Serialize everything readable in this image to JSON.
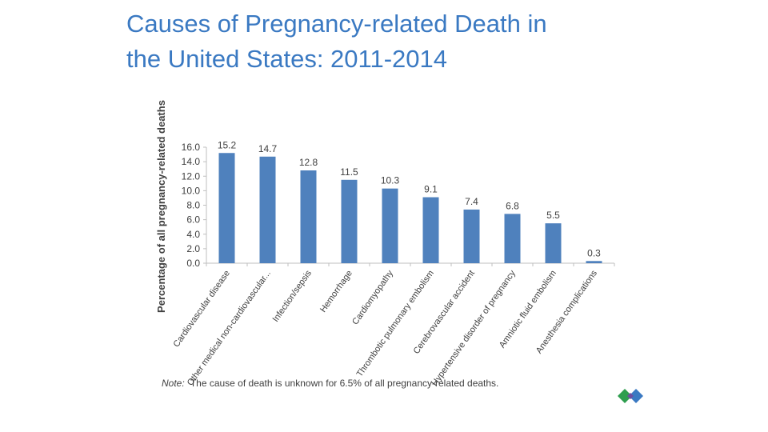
{
  "slide": {
    "title_line1": "Causes of Pregnancy-related Death in",
    "title_line2": "the United States: 2011-2014"
  },
  "chart_data": {
    "type": "bar",
    "title": "",
    "xlabel": "",
    "ylabel": "Percentage of all pregnancy-related deaths",
    "categories": [
      "Cardiovascular disease",
      "Other medical non-cardiovascular...",
      "Infection/sepsis",
      "Hemorrhage",
      "Cardiomyopathy",
      "Thrombotic pulmonary embolism",
      "Cerebrovascular accident",
      "Hypertensive disorder of pregnancy",
      "Amniotic fluid embolism",
      "Anesthesia complications"
    ],
    "values": [
      15.2,
      14.7,
      12.8,
      11.5,
      10.3,
      9.1,
      7.4,
      6.8,
      5.5,
      0.3
    ],
    "data_labels": [
      "15.2",
      "14.7",
      "12.8",
      "11.5",
      "10.3",
      "9.1",
      "7.4",
      "6.8",
      "5.5",
      "0.3"
    ],
    "ylim": [
      0,
      16
    ],
    "yticks": [
      "0.0",
      "2.0",
      "4.0",
      "6.0",
      "8.0",
      "10.0",
      "12.0",
      "14.0",
      "16.0"
    ],
    "grid": false,
    "legend": "none",
    "bar_color": "#4f81bd",
    "axis_color": "#bfbfbf",
    "text_color": "#404040"
  },
  "note": {
    "label": "Note:",
    "text": "The cause of death is unknown for 6.5% of all pregnancy-related deaths."
  },
  "logo": {
    "icon": "diamond-logo-icon",
    "colors": [
      "#2e9e4f",
      "#3a79c2",
      "#6f4ea0"
    ]
  }
}
